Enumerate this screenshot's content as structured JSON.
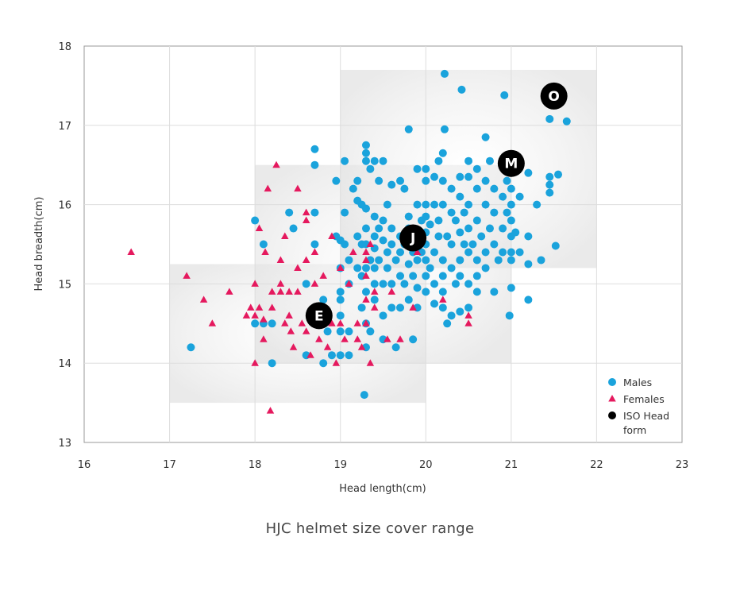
{
  "chart_data": {
    "type": "scatter",
    "title": "",
    "xlabel": "Head length(cm)",
    "ylabel": "Head breadth(cm)",
    "xlim": [
      16,
      23
    ],
    "ylim": [
      13,
      18
    ],
    "x_ticks": [
      "16",
      "17",
      "18",
      "19",
      "20",
      "21",
      "22",
      "23"
    ],
    "y_ticks": [
      "13",
      "14",
      "15",
      "16",
      "17",
      "18"
    ],
    "grid": true,
    "legend_position": "bottom-right",
    "size_ranges": [
      {
        "size": "E",
        "x": [
          17,
          20
        ],
        "y": [
          13.5,
          15.25
        ]
      },
      {
        "size": "J",
        "x": [
          18,
          21
        ],
        "y": [
          14,
          16.5
        ]
      },
      {
        "size": "M",
        "x": [
          19,
          22
        ],
        "y": [
          15.2,
          17.7
        ]
      }
    ],
    "series": [
      {
        "name": "Males",
        "marker": "circle",
        "color": "#1aa3dc",
        "points": [
          [
            17.25,
            14.2
          ],
          [
            18.0,
            15.8
          ],
          [
            18.1,
            15.5
          ],
          [
            18.0,
            14.5
          ],
          [
            18.1,
            14.5
          ],
          [
            18.2,
            14.5
          ],
          [
            18.2,
            14.0
          ],
          [
            18.4,
            15.9
          ],
          [
            18.45,
            15.7
          ],
          [
            18.6,
            15.0
          ],
          [
            18.6,
            14.1
          ],
          [
            18.7,
            16.7
          ],
          [
            18.7,
            16.5
          ],
          [
            18.7,
            15.9
          ],
          [
            18.7,
            15.5
          ],
          [
            18.7,
            14.65
          ],
          [
            18.8,
            14.0
          ],
          [
            18.8,
            14.8
          ],
          [
            18.85,
            14.4
          ],
          [
            18.9,
            14.1
          ],
          [
            18.95,
            16.3
          ],
          [
            18.95,
            15.6
          ],
          [
            19.0,
            15.55
          ],
          [
            19.0,
            15.2
          ],
          [
            19.0,
            14.9
          ],
          [
            19.0,
            14.8
          ],
          [
            19.0,
            14.6
          ],
          [
            19.0,
            14.4
          ],
          [
            19.0,
            14.1
          ],
          [
            19.05,
            16.55
          ],
          [
            19.05,
            15.9
          ],
          [
            19.05,
            15.5
          ],
          [
            19.1,
            14.1
          ],
          [
            19.1,
            14.4
          ],
          [
            19.1,
            15.3
          ],
          [
            19.1,
            15.0
          ],
          [
            19.15,
            16.2
          ],
          [
            19.2,
            15.6
          ],
          [
            19.2,
            15.2
          ],
          [
            19.2,
            16.3
          ],
          [
            19.2,
            16.05
          ],
          [
            19.25,
            16.0
          ],
          [
            19.25,
            15.5
          ],
          [
            19.25,
            15.1
          ],
          [
            19.25,
            14.7
          ],
          [
            19.3,
            16.75
          ],
          [
            19.3,
            16.65
          ],
          [
            19.3,
            16.55
          ],
          [
            19.3,
            15.95
          ],
          [
            19.3,
            15.7
          ],
          [
            19.3,
            15.5
          ],
          [
            19.3,
            15.2
          ],
          [
            19.3,
            14.9
          ],
          [
            19.3,
            14.5
          ],
          [
            19.3,
            14.2
          ],
          [
            19.28,
            13.6
          ],
          [
            19.35,
            16.45
          ],
          [
            19.35,
            15.3
          ],
          [
            19.35,
            14.4
          ],
          [
            19.4,
            16.55
          ],
          [
            19.4,
            15.85
          ],
          [
            19.4,
            15.6
          ],
          [
            19.4,
            15.45
          ],
          [
            19.4,
            15.2
          ],
          [
            19.4,
            15.0
          ],
          [
            19.4,
            14.8
          ],
          [
            19.45,
            16.3
          ],
          [
            19.45,
            15.7
          ],
          [
            19.45,
            15.3
          ],
          [
            19.5,
            16.55
          ],
          [
            19.5,
            15.8
          ],
          [
            19.5,
            15.55
          ],
          [
            19.5,
            15.0
          ],
          [
            19.5,
            14.6
          ],
          [
            19.5,
            14.3
          ],
          [
            19.55,
            16.0
          ],
          [
            19.55,
            15.4
          ],
          [
            19.55,
            15.2
          ],
          [
            19.6,
            16.25
          ],
          [
            19.6,
            15.7
          ],
          [
            19.6,
            15.5
          ],
          [
            19.6,
            15.0
          ],
          [
            19.6,
            14.7
          ],
          [
            19.65,
            15.3
          ],
          [
            19.65,
            14.2
          ],
          [
            19.7,
            16.3
          ],
          [
            19.7,
            15.6
          ],
          [
            19.7,
            15.4
          ],
          [
            19.7,
            15.1
          ],
          [
            19.7,
            14.7
          ],
          [
            19.75,
            16.2
          ],
          [
            19.75,
            15.5
          ],
          [
            19.75,
            15.0
          ],
          [
            19.8,
            15.85
          ],
          [
            19.8,
            15.7
          ],
          [
            19.8,
            15.25
          ],
          [
            19.8,
            14.8
          ],
          [
            19.8,
            16.95
          ],
          [
            19.85,
            15.4
          ],
          [
            19.85,
            15.1
          ],
          [
            19.85,
            14.3
          ],
          [
            19.9,
            16.45
          ],
          [
            19.9,
            16.0
          ],
          [
            19.9,
            15.6
          ],
          [
            19.9,
            15.3
          ],
          [
            19.9,
            14.95
          ],
          [
            19.9,
            14.7
          ],
          [
            19.95,
            15.8
          ],
          [
            19.95,
            15.4
          ],
          [
            20.0,
            16.45
          ],
          [
            20.0,
            16.3
          ],
          [
            20.0,
            16.0
          ],
          [
            20.0,
            15.85
          ],
          [
            20.0,
            15.65
          ],
          [
            20.0,
            15.5
          ],
          [
            20.0,
            15.3
          ],
          [
            20.0,
            15.1
          ],
          [
            20.0,
            14.9
          ],
          [
            20.05,
            15.75
          ],
          [
            20.05,
            15.2
          ],
          [
            20.1,
            16.35
          ],
          [
            20.1,
            16.0
          ],
          [
            20.1,
            15.4
          ],
          [
            20.1,
            15.0
          ],
          [
            20.1,
            14.75
          ],
          [
            20.15,
            16.55
          ],
          [
            20.15,
            15.8
          ],
          [
            20.15,
            15.6
          ],
          [
            20.2,
            16.65
          ],
          [
            20.2,
            16.3
          ],
          [
            20.2,
            16.0
          ],
          [
            20.2,
            15.3
          ],
          [
            20.2,
            15.1
          ],
          [
            20.2,
            14.9
          ],
          [
            20.2,
            14.7
          ],
          [
            20.22,
            17.65
          ],
          [
            20.22,
            16.95
          ],
          [
            20.25,
            15.6
          ],
          [
            20.25,
            14.5
          ],
          [
            20.3,
            16.2
          ],
          [
            20.3,
            15.9
          ],
          [
            20.3,
            15.5
          ],
          [
            20.3,
            15.2
          ],
          [
            20.3,
            14.6
          ],
          [
            20.35,
            15.8
          ],
          [
            20.35,
            15.0
          ],
          [
            20.4,
            16.35
          ],
          [
            20.4,
            16.1
          ],
          [
            20.4,
            15.65
          ],
          [
            20.4,
            15.3
          ],
          [
            20.4,
            15.1
          ],
          [
            20.4,
            14.65
          ],
          [
            20.42,
            17.45
          ],
          [
            20.45,
            15.9
          ],
          [
            20.45,
            15.5
          ],
          [
            20.5,
            16.55
          ],
          [
            20.5,
            16.35
          ],
          [
            20.5,
            16.0
          ],
          [
            20.5,
            15.7
          ],
          [
            20.5,
            15.4
          ],
          [
            20.5,
            15.0
          ],
          [
            20.5,
            14.7
          ],
          [
            20.55,
            15.5
          ],
          [
            20.6,
            16.45
          ],
          [
            20.6,
            16.2
          ],
          [
            20.6,
            15.8
          ],
          [
            20.6,
            15.3
          ],
          [
            20.6,
            15.1
          ],
          [
            20.6,
            14.9
          ],
          [
            20.65,
            15.6
          ],
          [
            20.7,
            16.85
          ],
          [
            20.7,
            16.3
          ],
          [
            20.7,
            16.0
          ],
          [
            20.7,
            15.4
          ],
          [
            20.7,
            15.2
          ],
          [
            20.75,
            16.55
          ],
          [
            20.75,
            15.7
          ],
          [
            20.8,
            16.2
          ],
          [
            20.8,
            15.9
          ],
          [
            20.8,
            15.5
          ],
          [
            20.8,
            14.9
          ],
          [
            20.85,
            15.3
          ],
          [
            20.9,
            16.1
          ],
          [
            20.9,
            15.7
          ],
          [
            20.9,
            15.4
          ],
          [
            20.95,
            16.3
          ],
          [
            20.95,
            15.9
          ],
          [
            20.92,
            17.38
          ],
          [
            21.0,
            16.4
          ],
          [
            21.0,
            16.2
          ],
          [
            21.0,
            16.0
          ],
          [
            21.0,
            15.8
          ],
          [
            21.0,
            15.6
          ],
          [
            21.0,
            15.4
          ],
          [
            21.0,
            15.3
          ],
          [
            21.0,
            14.95
          ],
          [
            20.98,
            14.6
          ],
          [
            21.05,
            15.65
          ],
          [
            21.1,
            16.1
          ],
          [
            21.1,
            15.4
          ],
          [
            21.2,
            16.4
          ],
          [
            21.2,
            15.6
          ],
          [
            21.2,
            15.25
          ],
          [
            21.2,
            14.8
          ],
          [
            21.3,
            16.0
          ],
          [
            21.35,
            15.3
          ],
          [
            21.45,
            17.08
          ],
          [
            21.45,
            16.35
          ],
          [
            21.45,
            16.25
          ],
          [
            21.45,
            16.15
          ],
          [
            21.52,
            15.48
          ],
          [
            21.55,
            16.38
          ],
          [
            21.65,
            17.05
          ]
        ]
      },
      {
        "name": "Females",
        "marker": "triangle",
        "color": "#e5195e",
        "points": [
          [
            16.55,
            15.4
          ],
          [
            17.2,
            15.1
          ],
          [
            17.4,
            14.8
          ],
          [
            17.5,
            14.5
          ],
          [
            17.7,
            14.9
          ],
          [
            17.9,
            14.6
          ],
          [
            18.0,
            15.0
          ],
          [
            17.95,
            14.7
          ],
          [
            18.0,
            14.0
          ],
          [
            18.0,
            14.6
          ],
          [
            18.05,
            15.7
          ],
          [
            18.05,
            14.7
          ],
          [
            18.1,
            14.55
          ],
          [
            18.1,
            14.3
          ],
          [
            18.12,
            15.4
          ],
          [
            18.15,
            16.2
          ],
          [
            18.2,
            14.9
          ],
          [
            18.2,
            14.7
          ],
          [
            18.18,
            13.4
          ],
          [
            18.25,
            16.5
          ],
          [
            18.3,
            15.3
          ],
          [
            18.3,
            15.0
          ],
          [
            18.3,
            14.9
          ],
          [
            18.35,
            15.6
          ],
          [
            18.35,
            14.5
          ],
          [
            18.4,
            14.9
          ],
          [
            18.4,
            14.6
          ],
          [
            18.42,
            14.4
          ],
          [
            18.45,
            14.2
          ],
          [
            18.5,
            16.2
          ],
          [
            18.5,
            15.2
          ],
          [
            18.5,
            14.9
          ],
          [
            18.55,
            14.5
          ],
          [
            18.6,
            15.9
          ],
          [
            18.6,
            15.8
          ],
          [
            18.6,
            15.3
          ],
          [
            18.6,
            14.4
          ],
          [
            18.65,
            14.1
          ],
          [
            18.7,
            15.4
          ],
          [
            18.7,
            15.0
          ],
          [
            18.7,
            14.7
          ],
          [
            18.75,
            14.3
          ],
          [
            18.8,
            14.6
          ],
          [
            18.8,
            15.1
          ],
          [
            18.85,
            14.2
          ],
          [
            18.9,
            15.6
          ],
          [
            18.9,
            14.5
          ],
          [
            18.95,
            14.0
          ],
          [
            19.0,
            15.2
          ],
          [
            19.0,
            14.5
          ],
          [
            19.05,
            14.3
          ],
          [
            19.1,
            15.0
          ],
          [
            19.15,
            15.4
          ],
          [
            19.2,
            14.5
          ],
          [
            19.2,
            14.3
          ],
          [
            19.25,
            14.2
          ],
          [
            19.3,
            15.4
          ],
          [
            19.3,
            15.3
          ],
          [
            19.3,
            15.1
          ],
          [
            19.3,
            14.8
          ],
          [
            19.3,
            14.5
          ],
          [
            19.35,
            15.5
          ],
          [
            19.35,
            14.0
          ],
          [
            19.4,
            14.7
          ],
          [
            19.4,
            14.9
          ],
          [
            19.55,
            14.3
          ],
          [
            19.6,
            14.9
          ],
          [
            19.7,
            14.3
          ],
          [
            19.85,
            14.7
          ],
          [
            19.9,
            15.4
          ],
          [
            20.2,
            14.8
          ],
          [
            20.5,
            14.6
          ],
          [
            20.5,
            14.5
          ]
        ]
      },
      {
        "name": "ISO Head form",
        "legend_label_lines": [
          "ISO Head",
          "form"
        ],
        "marker": "circle-labeled",
        "color": "#000000",
        "points": [
          {
            "label": "E",
            "x": 18.75,
            "y": 14.6
          },
          {
            "label": "J",
            "x": 19.85,
            "y": 15.58
          },
          {
            "label": "M",
            "x": 21.0,
            "y": 16.52
          },
          {
            "label": "O",
            "x": 21.5,
            "y": 17.37
          }
        ]
      }
    ]
  },
  "caption": "HJC helmet size cover range"
}
